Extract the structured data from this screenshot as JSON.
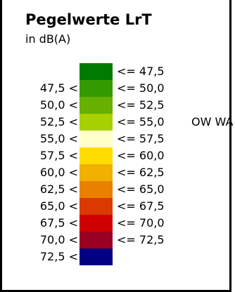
{
  "legend": {
    "title": "Pegelwerte LrT",
    "unit": "in dB(A)",
    "classes": [
      {
        "lower": "",
        "upper": "<= 47,5",
        "color": "#007a00",
        "note": ""
      },
      {
        "lower": "47,5 <",
        "upper": "<= 50,0",
        "color": "#339a00",
        "note": ""
      },
      {
        "lower": "50,0 <",
        "upper": "<= 52,5",
        "color": "#66b000",
        "note": ""
      },
      {
        "lower": "52,5 <",
        "upper": "<= 55,0",
        "color": "#a6d000",
        "note": "OW WA"
      },
      {
        "lower": "55,0 <",
        "upper": "<= 57,5",
        "color": "#ffffc8",
        "note": ""
      },
      {
        "lower": "57,5 <",
        "upper": "<= 60,0",
        "color": "#ffdd00",
        "note": ""
      },
      {
        "lower": "60,0 <",
        "upper": "<= 62,5",
        "color": "#f2b000",
        "note": ""
      },
      {
        "lower": "62,5 <",
        "upper": "<= 65,0",
        "color": "#ea8000",
        "note": ""
      },
      {
        "lower": "65,0 <",
        "upper": "<= 67,5",
        "color": "#da3a00",
        "note": ""
      },
      {
        "lower": "67,5 <",
        "upper": "<= 70,0",
        "color": "#d00000",
        "note": ""
      },
      {
        "lower": "70,0 <",
        "upper": "<= 72,5",
        "color": "#9a0022",
        "note": ""
      },
      {
        "lower": "72,5 <",
        "upper": "",
        "color": "#000080",
        "note": ""
      }
    ]
  }
}
